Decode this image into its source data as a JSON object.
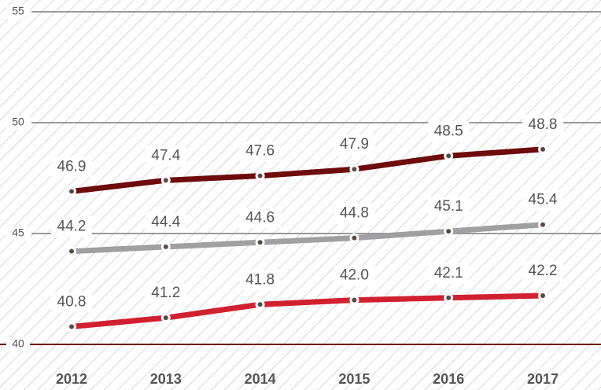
{
  "chart_data": {
    "type": "line",
    "categories": [
      "2012",
      "2013",
      "2014",
      "2015",
      "2016",
      "2017"
    ],
    "series": [
      {
        "color": "#6e0b0b",
        "values": [
          46.9,
          47.4,
          47.6,
          47.9,
          48.5,
          48.8
        ],
        "value_labels": [
          "46.9",
          "47.4",
          "47.6",
          "47.9",
          "48.5",
          "48.8"
        ]
      },
      {
        "color": "#a09fa1",
        "values": [
          44.2,
          44.4,
          44.6,
          44.8,
          45.1,
          45.4
        ],
        "value_labels": [
          "44.2",
          "44.4",
          "44.6",
          "44.8",
          "45.1",
          "45.4"
        ]
      },
      {
        "color": "#d1202f",
        "values": [
          40.8,
          41.2,
          41.8,
          42.0,
          42.1,
          42.2
        ],
        "value_labels": [
          "40.8",
          "41.2",
          "41.8",
          "42.0",
          "42.1",
          "42.2"
        ]
      }
    ],
    "ylim": [
      40,
      55
    ],
    "yticks": [
      40,
      45,
      50,
      55
    ],
    "grid": true
  }
}
